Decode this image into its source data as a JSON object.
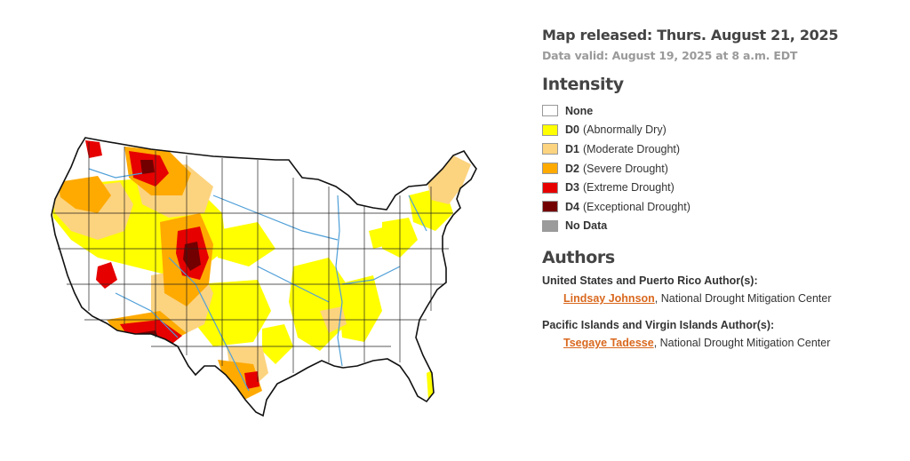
{
  "header": {
    "released": "Map released: Thurs. August 21, 2025",
    "valid": "Data valid: August 19, 2025 at 8 a.m. EDT"
  },
  "intensity": {
    "title": "Intensity",
    "items": [
      {
        "code": "",
        "label": "None",
        "color": "#ffffff"
      },
      {
        "code": "D0",
        "label": "(Abnormally Dry)",
        "color": "#ffff00"
      },
      {
        "code": "D1",
        "label": "(Moderate Drought)",
        "color": "#fcd37f"
      },
      {
        "code": "D2",
        "label": "(Severe Drought)",
        "color": "#ffaa00"
      },
      {
        "code": "D3",
        "label": "(Extreme Drought)",
        "color": "#e60000"
      },
      {
        "code": "D4",
        "label": "(Exceptional Drought)",
        "color": "#730000"
      },
      {
        "code": "",
        "label": "No Data",
        "color": "#9b9b9b"
      }
    ]
  },
  "authors": {
    "title": "Authors",
    "groups": [
      {
        "heading": "United States and Puerto Rico Author(s):",
        "name": "Lindsay Johnson",
        "org": ", National Drought Mitigation Center"
      },
      {
        "heading": "Pacific Islands and Virgin Islands Author(s):",
        "name": "Tsegaye Tadesse",
        "org": ", National Drought Mitigation Center"
      }
    ]
  },
  "map": {
    "colors": {
      "d0": "#ffff00",
      "d1": "#fcd37f",
      "d2": "#ffaa00",
      "d3": "#e60000",
      "d4": "#730000",
      "water": "#4f9fd8"
    }
  }
}
